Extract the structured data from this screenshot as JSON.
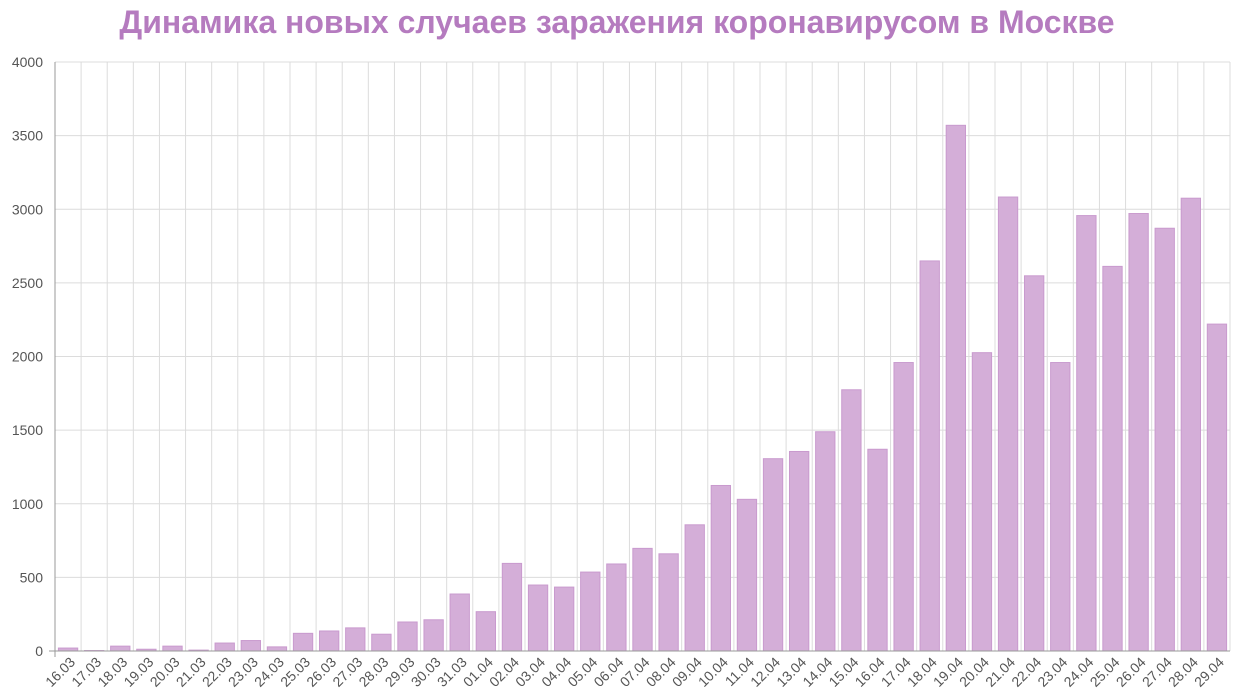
{
  "chart_data": {
    "type": "bar",
    "title": "Динамика новых случаев заражения коронавирусом в Москве",
    "xlabel": "",
    "ylabel": "",
    "ylim": [
      0,
      4000
    ],
    "yticks": [
      0,
      500,
      1000,
      1500,
      2000,
      2500,
      3000,
      3500,
      4000
    ],
    "grid": true,
    "legend": "none",
    "colors": {
      "title": "#b57bbf",
      "bar": "#d4aed8",
      "bar_stroke": "#c99ace"
    },
    "categories": [
      "16.03",
      "17.03",
      "18.03",
      "19.03",
      "20.03",
      "21.03",
      "22.03",
      "23.03",
      "24.03",
      "25.03",
      "26.03",
      "27.03",
      "28.03",
      "29.03",
      "30.03",
      "31.03",
      "01.04",
      "02.04",
      "03.04",
      "04.04",
      "05.04",
      "06.04",
      "07.04",
      "08.04",
      "09.04",
      "10.04",
      "11.04",
      "12.04",
      "13.04",
      "14.04",
      "15.04",
      "16.04",
      "17.04",
      "18.04",
      "19.04",
      "20.04",
      "21.04",
      "22.04",
      "23.04",
      "24.04",
      "25.04",
      "26.04",
      "27.04",
      "28.04",
      "29.04"
    ],
    "values": [
      20,
      3,
      33,
      12,
      33,
      6,
      54,
      71,
      28,
      120,
      136,
      157,
      114,
      197,
      212,
      387,
      267,
      595,
      448,
      434,
      536,
      591,
      697,
      660,
      857,
      1124,
      1030,
      1306,
      1355,
      1489,
      1774,
      1370,
      1959,
      2649,
      3570,
      2026,
      3083,
      2548,
      1959,
      2957,
      2612,
      2971,
      2871,
      3075,
      2220
    ]
  }
}
